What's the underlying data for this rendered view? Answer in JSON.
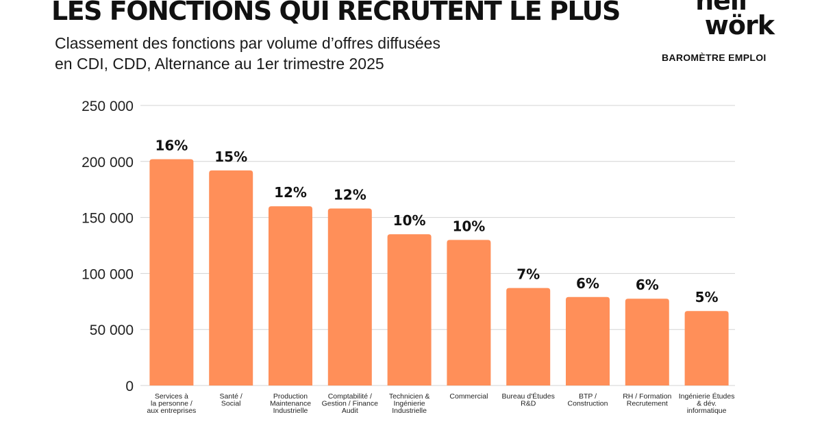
{
  "header": {
    "title": "LES FONCTIONS QUI RECRUTENT LE PLUS",
    "subtitle_lines": [
      "Classement des fonctions par volume d’offres diffusées",
      "en CDI, CDD, Alternance au 1er trimestre 2025"
    ]
  },
  "brand": {
    "logo_line1": "hell",
    "logo_line2": "wörk",
    "badge": "BAROMÈTRE EMPLOI"
  },
  "colors": {
    "bar": "#ff8f59",
    "grid": "#d3d3d3"
  },
  "chart_data": {
    "type": "bar",
    "categories": [
      "Services à la personne / aux entreprises",
      "Santé / Social",
      "Production Maintenance Industrielle",
      "Comptabilité / Gestion / Finance Audit",
      "Technicien & Ingénierie Industrielle",
      "Commercial",
      "Bureau d'Études R&D",
      "BTP / Construction",
      "RH / Formation Recrutement",
      "Ingénierie Études & dév. informatique"
    ],
    "category_lines": [
      [
        "Services à",
        "la personne /",
        "aux entreprises"
      ],
      [
        "Santé /",
        "Social"
      ],
      [
        "Production",
        "Maintenance",
        "Industrielle"
      ],
      [
        "Comptabilité /",
        "Gestion / Finance",
        "Audit"
      ],
      [
        "Technicien &",
        "Ingénierie",
        "Industrielle"
      ],
      [
        "Commercial"
      ],
      [
        "Bureau d'Études",
        "R&D"
      ],
      [
        "BTP /",
        "Construction"
      ],
      [
        "RH / Formation",
        "Recrutement"
      ],
      [
        "Ingénierie Études",
        "& dév.",
        "informatique"
      ]
    ],
    "values": [
      202000,
      192000,
      160000,
      158000,
      135000,
      130000,
      87000,
      79000,
      77500,
      66500
    ],
    "data_labels": [
      "16%",
      "15%",
      "12%",
      "12%",
      "10%",
      "10%",
      "7%",
      "6%",
      "6%",
      "5%"
    ],
    "y_ticks": [
      0,
      50000,
      100000,
      150000,
      200000,
      250000
    ],
    "y_tick_labels": [
      "0",
      "50 000",
      "100 000",
      "150 000",
      "200 000",
      "250 000"
    ],
    "ylim": [
      0,
      250000
    ],
    "grid": true,
    "legend": "none"
  }
}
